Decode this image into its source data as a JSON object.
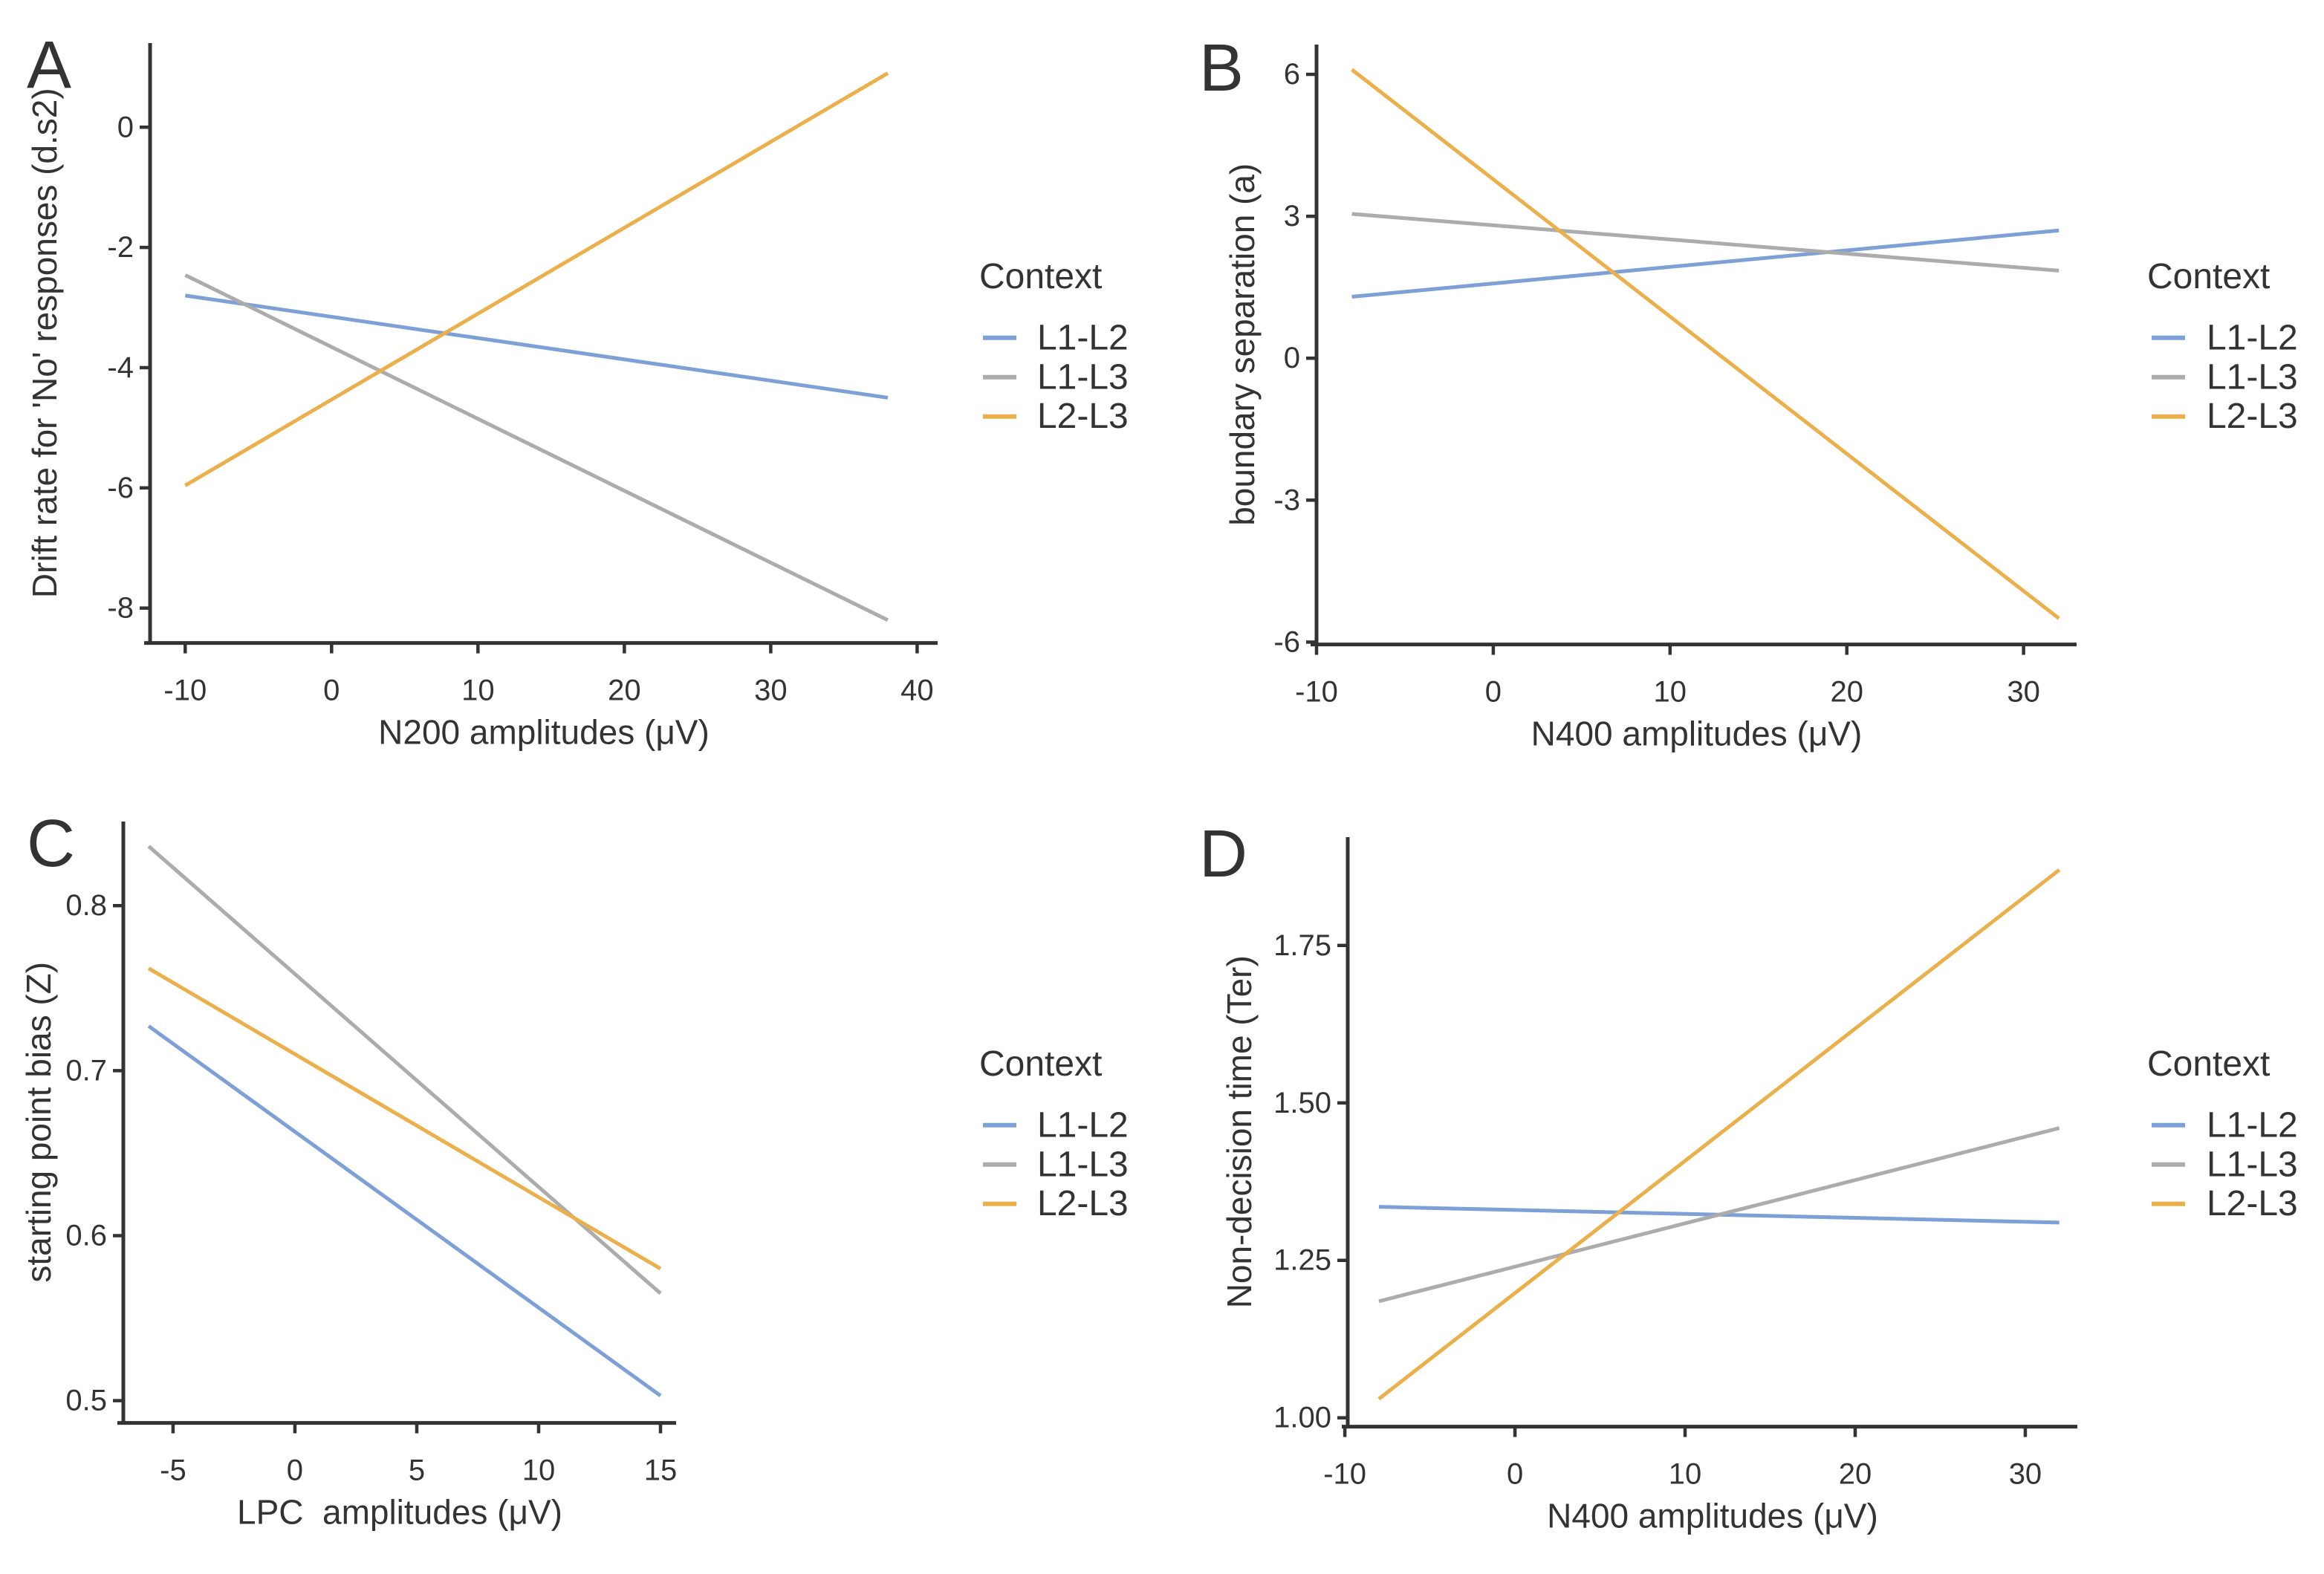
{
  "figure": {
    "background": "#ffffff",
    "text_color": "#333333",
    "axis_color": "#333333"
  },
  "legend": {
    "title": "Context",
    "entries": [
      {
        "label": "L1-L2",
        "color": "#7DA0D6"
      },
      {
        "label": "L1-L3",
        "color": "#ACACAC"
      },
      {
        "label": "L2-L3",
        "color": "#EBB04B"
      }
    ]
  },
  "chart_data": [
    {
      "id": "A",
      "type": "line",
      "panel_label": "A",
      "xlabel": "N200 amplitudes (μV)",
      "ylabel": "Drift rate for 'No' responses (d.s2)",
      "xlim": [
        -12.4,
        41.4
      ],
      "ylim": [
        -8.58,
        1.4
      ],
      "xticks": [
        {
          "v": -10,
          "label": "-10"
        },
        {
          "v": 0,
          "label": "0"
        },
        {
          "v": 10,
          "label": "10"
        },
        {
          "v": 20,
          "label": "20"
        },
        {
          "v": 30,
          "label": "30"
        },
        {
          "v": 40,
          "label": "40"
        }
      ],
      "yticks": [
        {
          "v": 0,
          "label": "0"
        },
        {
          "v": -2,
          "label": "-2"
        },
        {
          "v": -4,
          "label": "-4"
        },
        {
          "v": -6,
          "label": "-6"
        },
        {
          "v": -8,
          "label": "-8"
        }
      ],
      "legend_title": "Context",
      "series": [
        {
          "name": "L1-L2",
          "color": "#7DA0D6",
          "points": [
            [
              -10,
              -2.8
            ],
            [
              38,
              -4.5
            ]
          ]
        },
        {
          "name": "L1-L3",
          "color": "#ACACAC",
          "points": [
            [
              -10,
              -2.46
            ],
            [
              38,
              -8.2
            ]
          ]
        },
        {
          "name": "L2-L3",
          "color": "#EBB04B",
          "points": [
            [
              -10,
              -5.96
            ],
            [
              38,
              0.9
            ]
          ]
        }
      ]
    },
    {
      "id": "B",
      "type": "line",
      "panel_label": "B",
      "xlabel": "N400 amplitudes (μV)",
      "ylabel": "boundary separation (a)",
      "xlim": [
        -10.0,
        33.0
      ],
      "ylim": [
        -6.05,
        6.63
      ],
      "xticks": [
        {
          "v": -10,
          "label": "-10"
        },
        {
          "v": 0,
          "label": "0"
        },
        {
          "v": 10,
          "label": "10"
        },
        {
          "v": 20,
          "label": "20"
        },
        {
          "v": 30,
          "label": "30"
        }
      ],
      "yticks": [
        {
          "v": 6,
          "label": "6"
        },
        {
          "v": 3,
          "label": "3"
        },
        {
          "v": 0,
          "label": "0"
        },
        {
          "v": -3,
          "label": "-3"
        },
        {
          "v": -6,
          "label": "-6"
        }
      ],
      "legend_title": "Context",
      "series": [
        {
          "name": "L1-L2",
          "color": "#7DA0D6",
          "points": [
            [
              -8,
              1.3
            ],
            [
              32,
              2.7
            ]
          ]
        },
        {
          "name": "L1-L3",
          "color": "#ACACAC",
          "points": [
            [
              -8,
              3.05
            ],
            [
              32,
              1.85
            ]
          ]
        },
        {
          "name": "L2-L3",
          "color": "#EBB04B",
          "points": [
            [
              -8,
              6.1
            ],
            [
              32,
              -5.5
            ]
          ]
        }
      ]
    },
    {
      "id": "C",
      "type": "line",
      "panel_label": "C",
      "xlabel": "LPC  amplitudes (μV)",
      "ylabel": "starting point bias (Z)",
      "xlim": [
        -7.04,
        15.64
      ],
      "ylim": [
        0.4865,
        0.851
      ],
      "xticks": [
        {
          "v": -5,
          "label": "-5"
        },
        {
          "v": 0,
          "label": "0"
        },
        {
          "v": 5,
          "label": "5"
        },
        {
          "v": 10,
          "label": "10"
        },
        {
          "v": 15,
          "label": "15"
        }
      ],
      "yticks": [
        {
          "v": 0.8,
          "label": "0.8"
        },
        {
          "v": 0.7,
          "label": "0.7"
        },
        {
          "v": 0.6,
          "label": "0.6"
        },
        {
          "v": 0.5,
          "label": "0.5"
        }
      ],
      "legend_title": "Context",
      "series": [
        {
          "name": "L1-L2",
          "color": "#7DA0D6",
          "points": [
            [
              -6,
              0.727
            ],
            [
              15,
              0.503
            ]
          ]
        },
        {
          "name": "L1-L3",
          "color": "#ACACAC",
          "points": [
            [
              -6,
              0.836
            ],
            [
              15,
              0.565
            ]
          ]
        },
        {
          "name": "L2-L3",
          "color": "#EBB04B",
          "points": [
            [
              -6,
              0.762
            ],
            [
              15,
              0.58
            ]
          ]
        }
      ]
    },
    {
      "id": "D",
      "type": "line",
      "panel_label": "D",
      "xlabel": "N400 amplitudes (μV)",
      "ylabel": "Non-decision time (Ter)",
      "xlim": [
        -9.83,
        33.06
      ],
      "ylim": [
        0.986,
        1.922
      ],
      "xticks": [
        {
          "v": -10,
          "label": "-10"
        },
        {
          "v": 0,
          "label": "0"
        },
        {
          "v": 10,
          "label": "10"
        },
        {
          "v": 20,
          "label": "20"
        },
        {
          "v": 30,
          "label": "30"
        }
      ],
      "yticks": [
        {
          "v": 1.75,
          "label": "1.75"
        },
        {
          "v": 1.5,
          "label": "1.50"
        },
        {
          "v": 1.25,
          "label": "1.25"
        },
        {
          "v": 1.0,
          "label": "1.00"
        }
      ],
      "legend_title": "Context",
      "series": [
        {
          "name": "L1-L2",
          "color": "#7DA0D6",
          "points": [
            [
              -8,
              1.335
            ],
            [
              32,
              1.31
            ]
          ]
        },
        {
          "name": "L1-L3",
          "color": "#ACACAC",
          "points": [
            [
              -8,
              1.185
            ],
            [
              32,
              1.46
            ]
          ]
        },
        {
          "name": "L2-L3",
          "color": "#EBB04B",
          "points": [
            [
              -8,
              1.03
            ],
            [
              32,
              1.87
            ]
          ]
        }
      ]
    }
  ]
}
